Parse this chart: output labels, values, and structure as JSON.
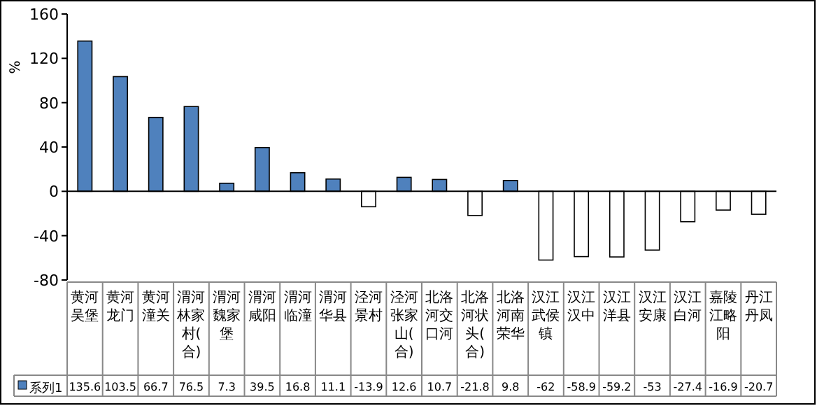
{
  "chart_data": {
    "type": "bar",
    "ylabel": "%",
    "categories": [
      "黄河吴堡",
      "黄河龙门",
      "黄河潼关",
      "渭河林家村(合)",
      "渭河魏家堡",
      "渭河咸阳",
      "渭河临潼",
      "渭河华县",
      "泾河景村",
      "泾河张家山(合)",
      "北洛河交口河",
      "北洛河状头(合)",
      "北洛河南荣华",
      "汉江武侯镇",
      "汉江汉中",
      "汉江洋县",
      "汉江安康",
      "汉江白河",
      "嘉陵江略阳",
      "丹江丹凤"
    ],
    "series": [
      {
        "name": "系列1",
        "color": "#4f81bd",
        "colors": [
          "#4f81bd",
          "#4f81bd",
          "#4f81bd",
          "#4f81bd",
          "#4f81bd",
          "#4f81bd",
          "#4f81bd",
          "#4f81bd",
          "#ffffff",
          "#4f81bd",
          "#4f81bd",
          "#ffffff",
          "#4f81bd",
          "#ffffff",
          "#ffffff",
          "#ffffff",
          "#ffffff",
          "#ffffff",
          "#ffffff",
          "#ffffff"
        ],
        "values": [
          135.6,
          103.5,
          66.7,
          76.5,
          7.3,
          39.5,
          16.8,
          11.1,
          -13.9,
          12.6,
          10.7,
          -21.8,
          9.8,
          -62,
          -58.9,
          -59.2,
          -53,
          -27.4,
          -16.9,
          -20.7
        ]
      }
    ],
    "ylim": [
      -80,
      160
    ],
    "yticks": [
      -80,
      -40,
      0,
      40,
      80,
      120,
      160
    ],
    "data_labels": true,
    "legend": "bottom left"
  }
}
